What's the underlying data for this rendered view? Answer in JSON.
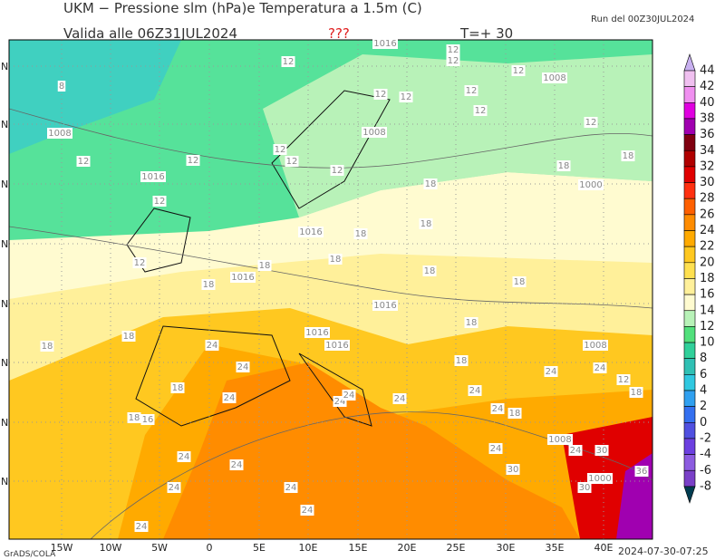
{
  "header": {
    "title": "UKM − Pressione slm (hPa)e Temperatura a 1.5m (C)",
    "valid": "Valida alle 06Z31JUL2024",
    "flag": "???",
    "step": "T=+ 30",
    "run": "Run del 00Z30JUL2024"
  },
  "colorbar": {
    "levels": [
      44,
      42,
      40,
      38,
      36,
      34,
      32,
      30,
      28,
      26,
      24,
      22,
      20,
      18,
      16,
      14,
      12,
      10,
      8,
      6,
      4,
      2,
      0,
      -2,
      -4,
      -6,
      -8
    ],
    "colors": [
      "#f0c0f0",
      "#f090f0",
      "#e000e0",
      "#a000b0",
      "#800010",
      "#b00000",
      "#e00000",
      "#ff3010",
      "#ff6000",
      "#ff8c00",
      "#ffaa00",
      "#ffc820",
      "#ffe050",
      "#fff09a",
      "#fffbd0",
      "#b8f2b8",
      "#52e07c",
      "#30d09a",
      "#30c0b4",
      "#30c8e0",
      "#30a0f0",
      "#3470f0",
      "#5050e0",
      "#6c40e0",
      "#8c5ce0",
      "#7a40c8"
    ],
    "over_color": "#c8b0f0",
    "under_color": "#003c50"
  },
  "x_labels": [
    "15W",
    "10W",
    "5W",
    "0",
    "5E",
    "10E",
    "15E",
    "20E",
    "25E",
    "30E",
    "35E",
    "40E"
  ],
  "y_labels": [
    "N",
    "N",
    "N",
    "N",
    "N",
    "N",
    "N",
    "N"
  ],
  "footer": {
    "left": "GrADS/COLA",
    "right": "2024-07-30-07:25"
  },
  "contour_labels": [
    "1016",
    "12",
    "12",
    "12",
    "8",
    "1008",
    "12",
    "12",
    "12",
    "12",
    "12",
    "12",
    "1008",
    "1008",
    "12",
    "12",
    "12",
    "12",
    "12",
    "1016",
    "18",
    "18",
    "1000",
    "18",
    "12",
    "1016",
    "18",
    "18",
    "12",
    "1016",
    "18",
    "18",
    "18",
    "18",
    "18",
    "1016",
    "18",
    "1016",
    "1016",
    "18",
    "18",
    "24",
    "1008",
    "18",
    "24",
    "24",
    "24",
    "12",
    "18",
    "24",
    "24",
    "24",
    "24",
    "24",
    "18",
    "18",
    "18",
    "16",
    "24",
    "1008",
    "24",
    "24",
    "30",
    "24",
    "24",
    "30",
    "1000",
    "30",
    "36",
    "24",
    "24",
    "24",
    "24"
  ]
}
